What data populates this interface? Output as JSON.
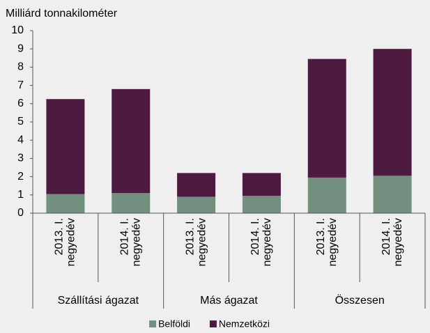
{
  "chart_data": {
    "type": "stacked_bar",
    "y_label": "Milliárd tonnakilométer",
    "categories": [
      [
        "2013. I.",
        "negyedév"
      ],
      [
        "2014. I.",
        "negyedév"
      ],
      [
        "2013. I.",
        "negyedév"
      ],
      [
        "2014. I.",
        "negyedév"
      ],
      [
        "2013. I.",
        "negyedév"
      ],
      [
        "2014. I.",
        "negyedév"
      ]
    ],
    "groups": [
      "Szállítási ágazat",
      "Más ágazat",
      "Összesen"
    ],
    "series": [
      {
        "name": "Belföldi",
        "color": "#728f80",
        "values": [
          1.05,
          1.1,
          0.9,
          0.95,
          1.95,
          2.05
        ]
      },
      {
        "name": "Nemzetközi",
        "color": "#4d1a40",
        "values": [
          5.2,
          5.7,
          1.3,
          1.25,
          6.5,
          6.95
        ]
      }
    ],
    "ylim": [
      0,
      10
    ],
    "yticks": [
      0,
      1,
      2,
      3,
      4,
      5,
      6,
      7,
      8,
      9,
      10
    ],
    "grid": false,
    "legend": "bottom"
  }
}
